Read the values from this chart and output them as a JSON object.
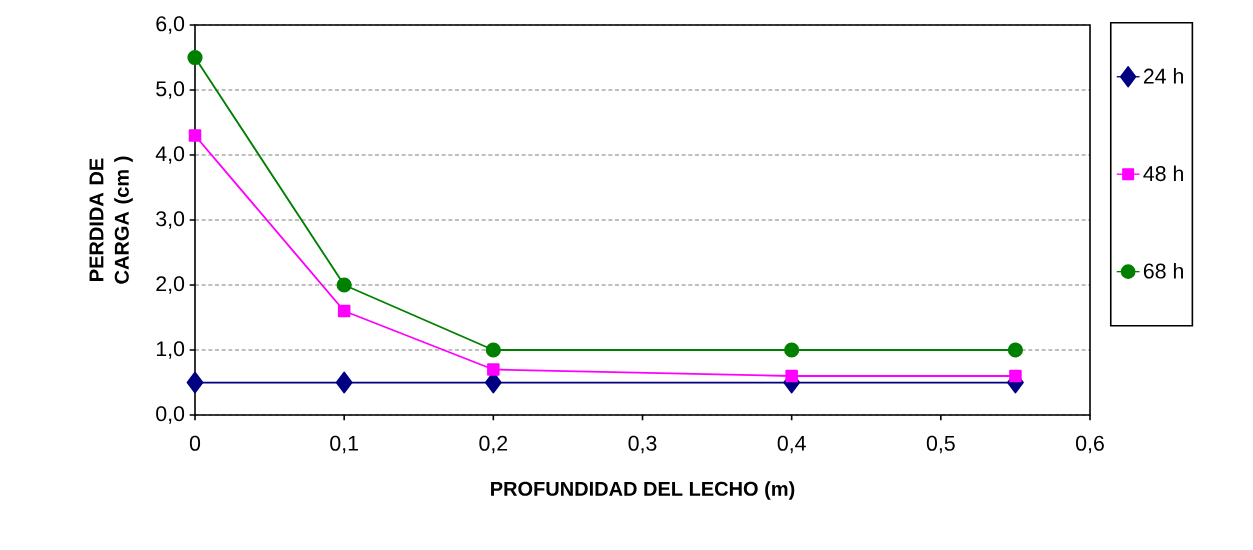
{
  "chart_data": {
    "type": "line",
    "xlabel": "PROFUNDIDAD DEL LECHO (m)",
    "ylabel": "PERDIDA DE CARGA (cm )",
    "x": [
      0,
      0.1,
      0.2,
      0.4,
      0.55
    ],
    "series": [
      {
        "name": "24 h",
        "color": "#000080",
        "marker": "diamond",
        "values": [
          0.5,
          0.5,
          0.5,
          0.5,
          0.5
        ]
      },
      {
        "name": "48 h",
        "color": "#ff00ff",
        "marker": "square",
        "values": [
          4.3,
          1.6,
          0.7,
          0.6,
          0.6
        ]
      },
      {
        "name": "68 h",
        "color": "#008000",
        "marker": "circle",
        "values": [
          5.5,
          2.0,
          1.0,
          1.0,
          1.0
        ]
      }
    ],
    "xlim": [
      0,
      0.6
    ],
    "xticks": [
      {
        "value": 0,
        "label": "0"
      },
      {
        "value": 0.1,
        "label": "0,1"
      },
      {
        "value": 0.2,
        "label": "0,2"
      },
      {
        "value": 0.3,
        "label": "0,3"
      },
      {
        "value": 0.4,
        "label": "0,4"
      },
      {
        "value": 0.5,
        "label": "0,5"
      },
      {
        "value": 0.6,
        "label": "0,6"
      }
    ],
    "ylim": [
      0,
      6
    ],
    "yticks": [
      {
        "value": 0,
        "label": "0,0"
      },
      {
        "value": 1,
        "label": "1,0"
      },
      {
        "value": 2,
        "label": "2,0"
      },
      {
        "value": 3,
        "label": "3,0"
      },
      {
        "value": 4,
        "label": "4,0"
      },
      {
        "value": 5,
        "label": "5,0"
      },
      {
        "value": 6,
        "label": "6,0"
      }
    ],
    "grid": "y",
    "legend": "right",
    "line_style": "solid"
  }
}
